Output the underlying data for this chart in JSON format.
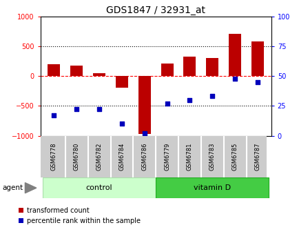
{
  "title": "GDS1847 / 32931_at",
  "categories": [
    "GSM6778",
    "GSM6780",
    "GSM6782",
    "GSM6784",
    "GSM6786",
    "GSM6779",
    "GSM6781",
    "GSM6783",
    "GSM6785",
    "GSM6787"
  ],
  "transformed_count": [
    200,
    170,
    50,
    -200,
    -970,
    210,
    320,
    300,
    700,
    580
  ],
  "percentile_rank": [
    17,
    22,
    22,
    10,
    2,
    27,
    30,
    33,
    48,
    45
  ],
  "bar_color": "#bb0000",
  "dot_color": "#0000bb",
  "ylim_left": [
    -1000,
    1000
  ],
  "ylim_right": [
    0,
    100
  ],
  "yticks_left": [
    -1000,
    -500,
    0,
    500,
    1000
  ],
  "yticks_right": [
    0,
    25,
    50,
    75,
    100
  ],
  "agent_label": "agent",
  "legend_items": [
    "transformed count",
    "percentile rank within the sample"
  ],
  "bar_width": 0.55,
  "background_color": "#ffffff",
  "ctrl_color": "#ccffcc",
  "vit_color": "#44cc44",
  "label_bg_color": "#cccccc",
  "plot_bg_color": "#ffffff"
}
